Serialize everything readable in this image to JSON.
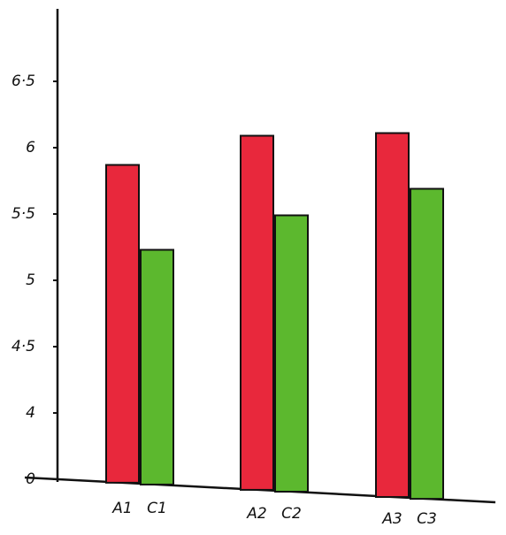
{
  "chart_data": {
    "type": "bar",
    "ylim": [
      3.5,
      7
    ],
    "axis_break": [
      0,
      3.5
    ],
    "yticks": [
      0,
      4,
      {
        "value": 4.5,
        "label": "4·5"
      },
      5,
      {
        "value": 5.5,
        "label": "5·5"
      },
      6,
      {
        "value": 6.5,
        "label": "6·5"
      }
    ],
    "series": [
      {
        "color": "#e8283c",
        "labels": [
          "A1",
          "A2",
          "A3"
        ],
        "values": [
          5.87,
          6.09,
          6.11
        ]
      },
      {
        "color": "#5cb82e",
        "labels": [
          "C1",
          "C2",
          "C3"
        ],
        "values": [
          5.23,
          5.49,
          5.69
        ]
      }
    ]
  }
}
